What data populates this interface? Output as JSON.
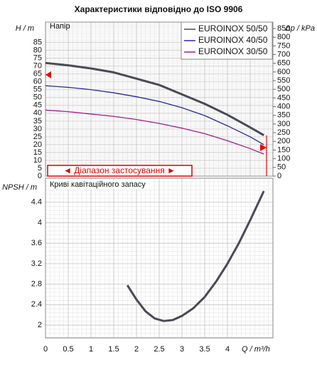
{
  "chart_data": [
    {
      "type": "line",
      "title": "Характеристики відповідно до ISO 9906",
      "subtitle": "Напір",
      "ylabel": "H / m",
      "y2label": "Δp / kPa",
      "annotation": "◄ Діапазон застосування ►",
      "x": [
        0,
        0.5,
        1,
        1.5,
        2,
        2.5,
        3,
        3.5,
        4,
        4.5,
        4.8
      ],
      "series": [
        {
          "name": "EUROINOX 50/50",
          "color": "#4a4a55",
          "values": [
            72,
            70.5,
            68.5,
            66,
            62,
            58,
            52,
            46,
            39,
            31,
            26
          ]
        },
        {
          "name": "EUROINOX 40/50",
          "color": "#2a2a9a",
          "values": [
            57.5,
            56.5,
            55,
            53,
            50.5,
            47.5,
            43.5,
            38.5,
            32,
            25,
            20
          ]
        },
        {
          "name": "EUROINOX 30/50",
          "color": "#a0208a",
          "values": [
            42,
            41,
            39.5,
            38,
            36,
            33.5,
            30.5,
            27,
            22.5,
            17.5,
            14
          ]
        }
      ],
      "xlim": [
        0,
        5
      ],
      "xticks": [
        0,
        0.5,
        1,
        1.5,
        2,
        2.5,
        3,
        3.5,
        4,
        4.5
      ],
      "ylim": [
        0,
        98
      ],
      "yticks": [
        0,
        5,
        10,
        15,
        20,
        25,
        30,
        35,
        40,
        45,
        50,
        55,
        60,
        65,
        70,
        75,
        80,
        85
      ],
      "y2lim": [
        0,
        887
      ],
      "y2ticks": [
        0,
        50,
        100,
        150,
        200,
        250,
        300,
        350,
        400,
        450,
        500,
        550,
        600,
        650,
        700,
        750,
        800,
        850
      ],
      "grid": true,
      "legend": "top-right"
    },
    {
      "type": "line",
      "title": "Криві кавітаційного запасу",
      "ylabel": "NPSH / m",
      "xlabel": "Q / m³/h",
      "x": [
        1.8,
        2,
        2.2,
        2.4,
        2.6,
        2.8,
        3,
        3.25,
        3.5,
        3.75,
        4,
        4.25,
        4.5,
        4.8
      ],
      "series": [
        {
          "color": "#4a4a55",
          "values": [
            2.78,
            2.5,
            2.27,
            2.13,
            2.08,
            2.1,
            2.18,
            2.33,
            2.55,
            2.85,
            3.2,
            3.6,
            4.05,
            4.62
          ]
        }
      ],
      "xlim": [
        0,
        5
      ],
      "xticks": [
        0,
        0.5,
        1,
        1.5,
        2,
        2.5,
        3,
        3.5,
        4
      ],
      "ylim": [
        1.75,
        4.87
      ],
      "yticks": [
        2,
        2.4,
        2.8,
        3.2,
        3.6,
        4,
        4.4
      ],
      "grid": true
    }
  ]
}
